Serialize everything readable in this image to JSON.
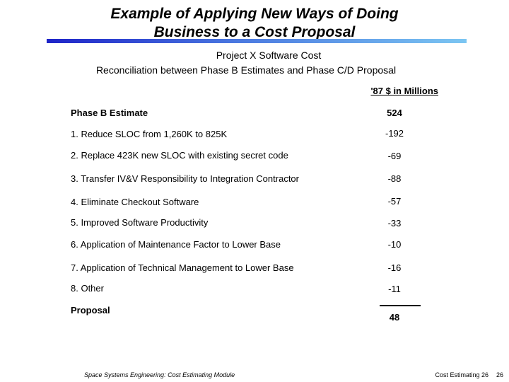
{
  "title": {
    "line1": "Example of Applying New Ways of Doing",
    "line2": "Business to a Cost Proposal"
  },
  "subtitle": {
    "line1": "Project X Software Cost",
    "line2": "Reconciliation between Phase B Estimates and Phase C/D Proposal"
  },
  "units": "'87 $ in Millions",
  "colors": {
    "rule_start": "#1e24c8",
    "rule_end": "#7cc6f2"
  },
  "table": {
    "baseline": {
      "label": "Phase B Estimate",
      "value": "524"
    },
    "items": [
      {
        "label": "1.  Reduce SLOC from 1,260K to 825K",
        "value": "-192"
      },
      {
        "label": "2.  Replace 423K new SLOC with existing secret code",
        "value": "-69"
      },
      {
        "label": "3.  Transfer IV&V Responsibility to Integration Contractor",
        "value": "-88"
      },
      {
        "label": "4.  Eliminate Checkout Software",
        "value": "-57"
      },
      {
        "label": "5.  Improved Software Productivity",
        "value": "-33"
      },
      {
        "label": "6.  Application of Maintenance Factor to Lower Base",
        "value": "-10"
      },
      {
        "label": "7.  Application of Technical Management to Lower Base",
        "value": "-16"
      },
      {
        "label": "8.  Other",
        "value": "-11"
      }
    ],
    "total": {
      "label": "Proposal",
      "value": "48"
    }
  },
  "footer": {
    "left": "Space Systems Engineering: Cost Estimating Module",
    "right": "Cost Estimating  26",
    "page": "26"
  }
}
